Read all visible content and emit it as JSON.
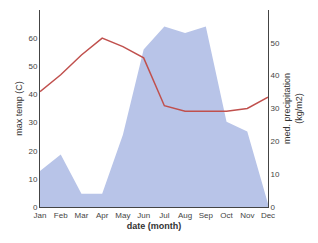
{
  "chart_data": {
    "type": "line",
    "xlabel": "date (month)",
    "ylabel": "max temp (C)",
    "y2label": "med. precipitation\n(kg/m2)",
    "categories": [
      "Jan",
      "Feb",
      "Mar",
      "Apr",
      "May",
      "Jun",
      "Jul",
      "Aug",
      "Sep",
      "Oct",
      "Nov",
      "Dec"
    ],
    "series": [
      {
        "type": "area",
        "axis": "y2",
        "color": "#b8c4e8",
        "values": [
          11,
          16,
          4,
          4,
          22,
          48,
          55,
          53,
          55,
          26,
          23,
          1
        ]
      },
      {
        "type": "line",
        "color": "#c0504d",
        "values": [
          41,
          47,
          54,
          60,
          57,
          53,
          36,
          34,
          34,
          34,
          35,
          39
        ]
      }
    ],
    "ylim": [
      0,
      70
    ],
    "yticks": [
      0,
      10,
      20,
      30,
      40,
      50,
      60
    ],
    "y2lim": [
      0,
      60
    ],
    "y2ticks": [
      0,
      10,
      20,
      30,
      40,
      50
    ],
    "grid": false
  }
}
